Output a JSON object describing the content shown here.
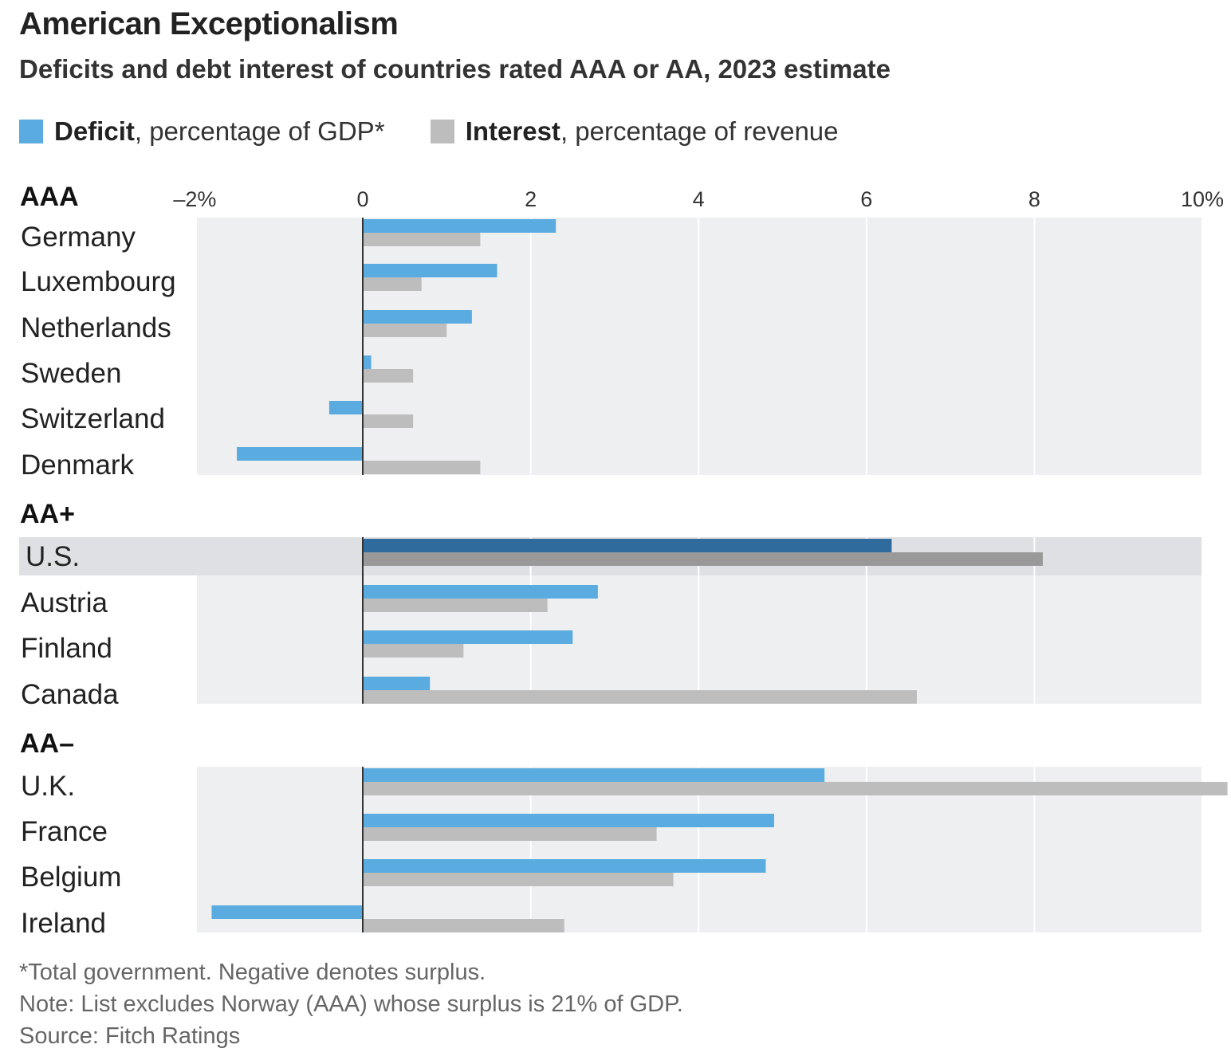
{
  "chart_data": {
    "type": "bar",
    "orientation": "horizontal",
    "title": "American Exceptionalism",
    "subtitle": "Deficits and debt interest of countries rated AAA or AA, 2023 estimate",
    "x_ticks": [
      {
        "value": -2,
        "label": "–2%"
      },
      {
        "value": 0,
        "label": "0"
      },
      {
        "value": 2,
        "label": "2"
      },
      {
        "value": 4,
        "label": "4"
      },
      {
        "value": 6,
        "label": "6"
      },
      {
        "value": 8,
        "label": "8"
      },
      {
        "value": 10,
        "label": "10%"
      }
    ],
    "xlim": [
      -2,
      10
    ],
    "grid": true,
    "legend_placement": "top-left",
    "series": [
      {
        "key": "deficit",
        "name_bold": "Deficit",
        "name_rest": ", percentage of GDP*",
        "color": "#5aabdf",
        "highlight_color": "#2f6b9c"
      },
      {
        "key": "interest",
        "name_bold": "Interest",
        "name_rest": ", percentage of revenue",
        "color": "#bdbdbd",
        "highlight_color": "#999999"
      }
    ],
    "groups": [
      {
        "label": "AAA",
        "countries": [
          {
            "name": "Germany",
            "deficit": 2.3,
            "interest": 1.4
          },
          {
            "name": "Luxembourg",
            "deficit": 1.6,
            "interest": 0.7
          },
          {
            "name": "Netherlands",
            "deficit": 1.3,
            "interest": 1.0
          },
          {
            "name": "Sweden",
            "deficit": 0.1,
            "interest": 0.6
          },
          {
            "name": "Switzerland",
            "deficit": -0.4,
            "interest": 0.6
          },
          {
            "name": "Denmark",
            "deficit": -1.5,
            "interest": 1.4
          }
        ]
      },
      {
        "label": "AA+",
        "countries": [
          {
            "name": "U.S.",
            "deficit": 6.3,
            "interest": 8.1,
            "highlight": true
          },
          {
            "name": "Austria",
            "deficit": 2.8,
            "interest": 2.2
          },
          {
            "name": "Finland",
            "deficit": 2.5,
            "interest": 1.2
          },
          {
            "name": "Canada",
            "deficit": 0.8,
            "interest": 6.6
          }
        ]
      },
      {
        "label": "AA–",
        "countries": [
          {
            "name": "U.K.",
            "deficit": 5.5,
            "interest": 10.3
          },
          {
            "name": "France",
            "deficit": 4.9,
            "interest": 3.5
          },
          {
            "name": "Belgium",
            "deficit": 4.8,
            "interest": 3.7
          },
          {
            "name": "Ireland",
            "deficit": -1.8,
            "interest": 2.4
          }
        ]
      }
    ]
  },
  "footnotes": {
    "asterisk": "*Total government. Negative denotes surplus.",
    "note": "Note: List excludes Norway (AAA) whose surplus is 21% of GDP.",
    "source": "Source: Fitch Ratings"
  }
}
